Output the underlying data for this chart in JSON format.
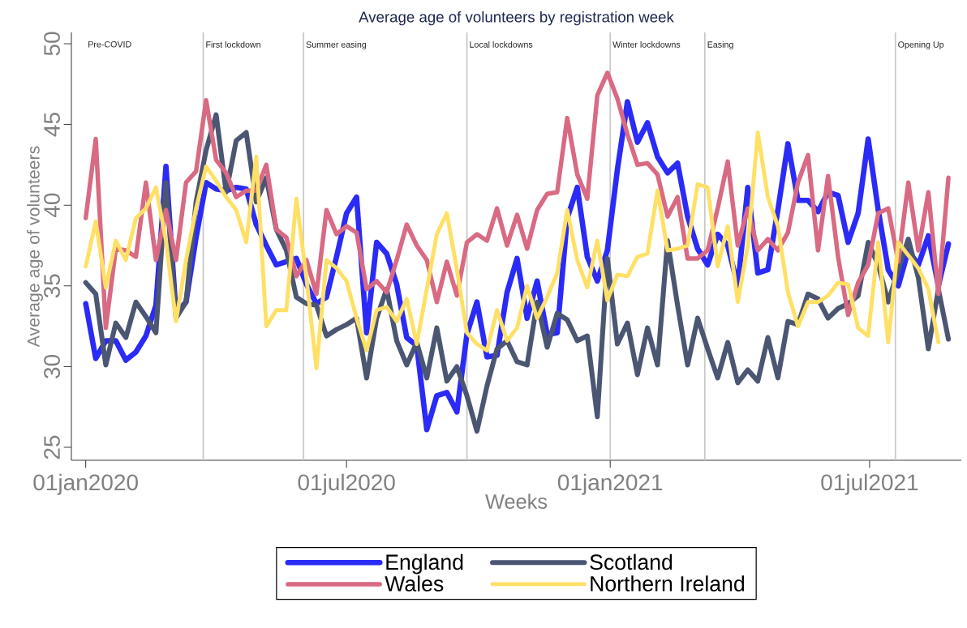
{
  "chart_data": {
    "type": "line",
    "title": "Average age of volunteers by registration week",
    "xlabel": "Weeks",
    "ylabel": "Average age of volunteers",
    "x": [
      "2020-01-01",
      "2020-01-08",
      "2020-01-15",
      "2020-01-22",
      "2020-01-29",
      "2020-02-05",
      "2020-02-12",
      "2020-02-19",
      "2020-02-26",
      "2020-03-04",
      "2020-03-11",
      "2020-03-18",
      "2020-03-25",
      "2020-04-01",
      "2020-04-08",
      "2020-04-15",
      "2020-04-22",
      "2020-04-29",
      "2020-05-06",
      "2020-05-13",
      "2020-05-20",
      "2020-05-27",
      "2020-06-03",
      "2020-06-10",
      "2020-06-17",
      "2020-06-24",
      "2020-07-01",
      "2020-07-08",
      "2020-07-15",
      "2020-07-22",
      "2020-07-29",
      "2020-08-05",
      "2020-08-12",
      "2020-08-19",
      "2020-08-26",
      "2020-09-02",
      "2020-09-09",
      "2020-09-16",
      "2020-09-23",
      "2020-09-30",
      "2020-10-07",
      "2020-10-14",
      "2020-10-21",
      "2020-10-28",
      "2020-11-04",
      "2020-11-11",
      "2020-11-18",
      "2020-11-25",
      "2020-12-02",
      "2020-12-09",
      "2020-12-16",
      "2020-12-23",
      "2020-12-30",
      "2021-01-06",
      "2021-01-13",
      "2021-01-20",
      "2021-01-27",
      "2021-02-03",
      "2021-02-10",
      "2021-02-17",
      "2021-02-24",
      "2021-03-03",
      "2021-03-10",
      "2021-03-17",
      "2021-03-24",
      "2021-03-31",
      "2021-04-07",
      "2021-04-14",
      "2021-04-21",
      "2021-04-28",
      "2021-05-05",
      "2021-05-12",
      "2021-05-19",
      "2021-05-26",
      "2021-06-02",
      "2021-06-09",
      "2021-06-16",
      "2021-06-23",
      "2021-06-30",
      "2021-07-07",
      "2021-07-14",
      "2021-07-21",
      "2021-07-28",
      "2021-08-04",
      "2021-08-11",
      "2021-08-18",
      "2021-08-25"
    ],
    "series": [
      {
        "name": "England",
        "color": "#2b2bf7",
        "values": [
          33.9,
          30.5,
          31.6,
          31.6,
          30.4,
          30.9,
          31.9,
          33.8,
          42.4,
          33.3,
          34.0,
          38.0,
          41.4,
          41.0,
          40.9,
          41.1,
          41.0,
          38.8,
          37.5,
          36.3,
          36.5,
          36.7,
          35.1,
          33.9,
          34.3,
          36.8,
          39.5,
          40.5,
          32.1,
          37.7,
          37.0,
          35.1,
          31.8,
          31.3,
          26.1,
          28.2,
          28.4,
          27.2,
          32.0,
          34.0,
          30.6,
          30.7,
          34.6,
          36.7,
          33.0,
          35.3,
          32.0,
          32.1,
          39.2,
          41.1,
          36.8,
          35.3,
          37.2,
          42.2,
          46.4,
          43.9,
          45.1,
          43.0,
          42.0,
          42.6,
          39.3,
          37.3,
          36.3,
          38.2,
          37.5,
          35.0,
          41.1,
          35.8,
          36.0,
          39.7,
          43.8,
          40.3,
          40.3,
          39.6,
          40.8,
          40.6,
          37.7,
          39.5,
          44.1,
          39.7,
          36.0,
          35.0,
          37.2,
          36.3,
          38.1,
          35.0,
          37.6
        ]
      },
      {
        "name": "Scotland",
        "color": "#4b5673",
        "values": [
          35.2,
          34.5,
          30.1,
          32.7,
          31.8,
          34.0,
          33.1,
          32.1,
          41.4,
          33.0,
          34.0,
          40.2,
          43.4,
          45.6,
          40.8,
          44.0,
          44.5,
          40.2,
          41.7,
          38.5,
          37.2,
          34.3,
          33.9,
          33.8,
          31.9,
          32.3,
          32.6,
          33.0,
          29.3,
          33.0,
          34.8,
          31.6,
          30.1,
          31.5,
          29.3,
          32.4,
          29.1,
          30.0,
          28.2,
          26.0,
          28.8,
          31.1,
          31.6,
          30.3,
          30.1,
          34.0,
          31.2,
          33.3,
          32.9,
          31.6,
          31.9,
          26.9,
          36.7,
          31.4,
          32.7,
          29.5,
          32.4,
          30.1,
          37.8,
          33.8,
          30.1,
          33.0,
          31.1,
          29.3,
          31.5,
          29.0,
          29.8,
          29.1,
          31.8,
          29.3,
          32.8,
          32.6,
          34.5,
          34.2,
          33.0,
          33.6,
          33.9,
          34.4,
          37.7,
          36.3,
          34.0,
          36.0,
          37.9,
          35.5,
          31.1,
          34.8,
          31.7
        ]
      },
      {
        "name": "Wales",
        "color": "#d96a84",
        "values": [
          39.2,
          44.1,
          32.4,
          37.3,
          37.2,
          36.8,
          41.4,
          36.6,
          39.7,
          36.6,
          41.4,
          42.1,
          46.5,
          42.8,
          42.0,
          40.5,
          40.9,
          40.9,
          42.5,
          38.5,
          38.0,
          35.6,
          36.6,
          34.5,
          39.7,
          38.2,
          38.7,
          38.3,
          34.8,
          35.3,
          34.6,
          36.6,
          38.8,
          37.5,
          36.6,
          34.0,
          36.5,
          34.4,
          37.7,
          38.2,
          37.8,
          39.8,
          37.5,
          39.4,
          37.3,
          39.7,
          40.7,
          40.8,
          45.4,
          41.9,
          40.4,
          46.8,
          48.2,
          46.6,
          44.4,
          42.5,
          42.6,
          41.9,
          39.3,
          40.5,
          36.7,
          36.7,
          37.2,
          39.8,
          42.7,
          37.5,
          39.8,
          37.2,
          37.9,
          37.2,
          38.3,
          41.4,
          43.1,
          37.2,
          41.8,
          36.8,
          33.2,
          35.2,
          36.3,
          39.5,
          39.8,
          36.5,
          41.4,
          37.2,
          40.8,
          34.5,
          41.7
        ]
      },
      {
        "name": "Northern Ireland",
        "color": "#ffe066",
        "values": [
          36.2,
          39.0,
          34.9,
          37.8,
          36.6,
          39.2,
          39.8,
          41.1,
          37.8,
          32.8,
          36.6,
          39.8,
          42.4,
          41.5,
          40.5,
          39.7,
          37.7,
          43.0,
          32.5,
          33.5,
          33.5,
          40.4,
          35.5,
          29.9,
          36.6,
          36.1,
          35.3,
          33.0,
          31.0,
          33.5,
          33.7,
          32.8,
          34.2,
          31.4,
          34.8,
          38.2,
          39.5,
          36.0,
          32.1,
          31.4,
          31.0,
          33.5,
          31.6,
          32.4,
          35.0,
          33.0,
          34.3,
          35.8,
          39.7,
          36.6,
          34.9,
          37.8,
          34.1,
          35.7,
          35.6,
          36.8,
          37.0,
          40.9,
          37.2,
          37.3,
          37.5,
          41.3,
          41.1,
          36.2,
          38.7,
          34.0,
          37.5,
          44.5,
          40.5,
          38.7,
          34.6,
          32.5,
          34.0,
          34.0,
          34.4,
          35.2,
          35.1,
          32.4,
          31.9,
          37.7,
          31.5,
          37.7,
          36.9,
          36.1,
          34.8,
          31.5,
          null
        ]
      }
    ],
    "xlim": [
      "2019-12-22",
      "2021-09-03"
    ],
    "xticks": [
      {
        "value": "2020-01-01",
        "label": "01jan2020"
      },
      {
        "value": "2020-07-01",
        "label": "01jul2020"
      },
      {
        "value": "2021-01-01",
        "label": "01jan2021"
      },
      {
        "value": "2021-07-01",
        "label": "01jul2021"
      }
    ],
    "ylim": [
      24.2,
      50.7
    ],
    "yticks": [
      25,
      30,
      35,
      40,
      45,
      50
    ],
    "ref_lines": [
      {
        "axis": "x",
        "value": "2020-03-23",
        "label": "First lockdown",
        "color": "#c8c8c8"
      },
      {
        "axis": "x",
        "value": "2020-06-01",
        "label": "Summer easing",
        "color": "#c8c8c8"
      },
      {
        "axis": "x",
        "value": "2020-09-23",
        "label": "Local lockdowns",
        "color": "#c8c8c8"
      },
      {
        "axis": "x",
        "value": "2021-01-01",
        "label": "Winter lockdowns",
        "color": "#c8c8c8"
      },
      {
        "axis": "x",
        "value": "2021-03-08",
        "label": "Easing",
        "color": "#c8c8c8"
      },
      {
        "axis": "x",
        "value": "2021-07-19",
        "label": "Opening Up",
        "color": "#c8c8c8"
      }
    ],
    "annotations": [
      "Pre-COVID"
    ],
    "legend": "bottom"
  }
}
